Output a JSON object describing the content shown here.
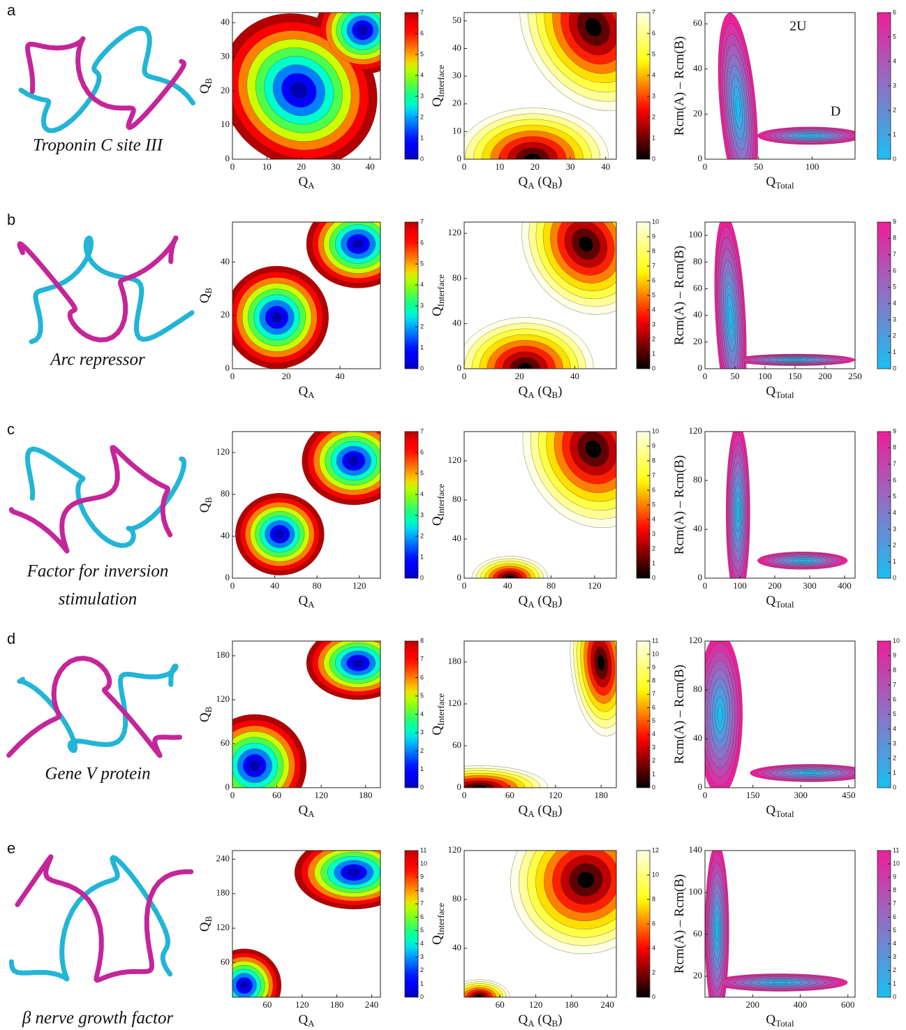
{
  "rows": [
    {
      "label": "a",
      "protein": [
        "Troponin C site III"
      ],
      "plots": [
        {
          "colormap": "jet",
          "xlabel": [
            "Q",
            "A"
          ],
          "ylabel": [
            "Q",
            "B"
          ],
          "xlim": [
            0,
            43
          ],
          "ylim": [
            0,
            43
          ],
          "xticks": [
            0,
            10,
            20,
            30,
            40
          ],
          "yticks": [
            0,
            10,
            20,
            30,
            40
          ],
          "clim": [
            0,
            7
          ],
          "cticks": [
            0,
            1,
            2,
            3,
            4,
            5,
            6,
            7
          ]
        },
        {
          "colormap": "hot",
          "xlabel": [
            "Q",
            "A",
            " (Q",
            "B",
            ")"
          ],
          "ylabel": [
            "Q",
            "Interface"
          ],
          "xlim": [
            0,
            43
          ],
          "ylim": [
            0,
            53
          ],
          "xticks": [
            0,
            10,
            20,
            30,
            40
          ],
          "yticks": [
            0,
            10,
            20,
            30,
            40,
            50
          ],
          "clim": [
            0,
            7
          ],
          "cticks": [
            0,
            1,
            2,
            3,
            4,
            5,
            6,
            7
          ]
        },
        {
          "colormap": "cool",
          "xlabel": [
            "Q",
            "Total"
          ],
          "ylabel": [
            "Rcm(A) – Rcm(B)"
          ],
          "xlim": [
            0,
            140
          ],
          "ylim": [
            0,
            65
          ],
          "xticks": [
            0,
            50,
            100
          ],
          "yticks": [
            0,
            20,
            40,
            60
          ],
          "clim": [
            0,
            6
          ],
          "cticks": [
            0,
            1,
            2,
            3,
            4,
            5,
            6
          ],
          "annotations": [
            "2U",
            "D"
          ]
        }
      ]
    },
    {
      "label": "b",
      "protein": [
        "Arc repressor"
      ],
      "plots": [
        {
          "colormap": "jet",
          "xlabel": [
            "Q",
            "A"
          ],
          "ylabel": [
            "Q",
            "B"
          ],
          "xlim": [
            0,
            55
          ],
          "ylim": [
            0,
            55
          ],
          "xticks": [
            0,
            20,
            40
          ],
          "yticks": [
            0,
            20,
            40
          ],
          "clim": [
            0,
            7
          ],
          "cticks": [
            0,
            1,
            2,
            3,
            4,
            5,
            6,
            7
          ]
        },
        {
          "colormap": "hot",
          "xlabel": [
            "Q",
            "A",
            " (Q",
            "B",
            ")"
          ],
          "ylabel": [
            "Q",
            "Interface"
          ],
          "xlim": [
            0,
            55
          ],
          "ylim": [
            0,
            130
          ],
          "xticks": [
            0,
            20,
            40
          ],
          "yticks": [
            0,
            40,
            80,
            120
          ],
          "clim": [
            0,
            10
          ],
          "cticks": [
            0,
            1,
            2,
            3,
            4,
            5,
            6,
            7,
            8,
            9,
            10
          ]
        },
        {
          "colormap": "cool",
          "xlabel": [
            "Q",
            "Total"
          ],
          "ylabel": [
            "Rcm(A) – Rcm(B)"
          ],
          "xlim": [
            0,
            250
          ],
          "ylim": [
            0,
            110
          ],
          "xticks": [
            0,
            50,
            100,
            150,
            200,
            250
          ],
          "yticks": [
            0,
            20,
            40,
            60,
            80,
            100
          ],
          "clim": [
            0,
            9
          ],
          "cticks": [
            0,
            1,
            2,
            3,
            4,
            5,
            6,
            7,
            8,
            9
          ]
        }
      ]
    },
    {
      "label": "c",
      "protein": [
        "Factor for inversion",
        "stimulation"
      ],
      "plots": [
        {
          "colormap": "jet",
          "xlabel": [
            "Q",
            "A"
          ],
          "ylabel": [
            "Q",
            "B"
          ],
          "xlim": [
            0,
            140
          ],
          "ylim": [
            0,
            140
          ],
          "xticks": [
            0,
            40,
            80,
            120
          ],
          "yticks": [
            0,
            40,
            80,
            120
          ],
          "clim": [
            0,
            7
          ],
          "cticks": [
            0,
            1,
            2,
            3,
            4,
            5,
            6,
            7
          ]
        },
        {
          "colormap": "hot",
          "xlabel": [
            "Q",
            "A",
            " (Q",
            "B",
            ")"
          ],
          "ylabel": [
            "Q",
            "Interface"
          ],
          "xlim": [
            0,
            140
          ],
          "ylim": [
            0,
            150
          ],
          "xticks": [
            0,
            40,
            80,
            120
          ],
          "yticks": [
            0,
            40,
            80,
            120
          ],
          "clim": [
            0,
            10
          ],
          "cticks": [
            0,
            1,
            2,
            3,
            4,
            5,
            6,
            7,
            8,
            9,
            10
          ]
        },
        {
          "colormap": "cool",
          "xlabel": [
            "Q",
            "Total"
          ],
          "ylabel": [
            "Rcm(A) – Rcm(B)"
          ],
          "xlim": [
            0,
            430
          ],
          "ylim": [
            0,
            120
          ],
          "xticks": [
            0,
            100,
            200,
            300,
            400
          ],
          "yticks": [
            0,
            40,
            80,
            120
          ],
          "clim": [
            0,
            9
          ],
          "cticks": [
            0,
            1,
            2,
            3,
            4,
            5,
            6,
            7,
            8,
            9
          ]
        }
      ]
    },
    {
      "label": "d",
      "protein": [
        "Gene V protein"
      ],
      "plots": [
        {
          "colormap": "jet",
          "xlabel": [
            "Q",
            "A"
          ],
          "ylabel": [
            "Q",
            "B"
          ],
          "xlim": [
            0,
            200
          ],
          "ylim": [
            0,
            200
          ],
          "xticks": [
            0,
            60,
            120,
            180
          ],
          "yticks": [
            0,
            60,
            120,
            180
          ],
          "clim": [
            0,
            8
          ],
          "cticks": [
            0,
            1,
            2,
            3,
            4,
            5,
            6,
            7,
            8
          ]
        },
        {
          "colormap": "hot",
          "xlabel": [
            "Q",
            "A",
            " (Q",
            "B",
            ")"
          ],
          "ylabel": [
            "Q",
            "Interface"
          ],
          "xlim": [
            0,
            200
          ],
          "ylim": [
            0,
            210
          ],
          "xticks": [
            0,
            60,
            120,
            180
          ],
          "yticks": [
            0,
            60,
            120,
            180
          ],
          "clim": [
            0,
            11
          ],
          "cticks": [
            0,
            1,
            2,
            3,
            4,
            5,
            6,
            7,
            8,
            9,
            10,
            11
          ]
        },
        {
          "colormap": "cool",
          "xlabel": [
            "Q",
            "Total"
          ],
          "ylabel": [
            "Rcm(A) – Rcm(B)"
          ],
          "xlim": [
            0,
            470
          ],
          "ylim": [
            0,
            120
          ],
          "xticks": [
            0,
            150,
            300,
            450
          ],
          "yticks": [
            0,
            40,
            80,
            120
          ],
          "clim": [
            0,
            10
          ],
          "cticks": [
            0,
            1,
            2,
            3,
            4,
            5,
            6,
            7,
            8,
            9,
            10
          ]
        }
      ]
    },
    {
      "label": "e",
      "protein": [
        "β nerve growth factor"
      ],
      "plots": [
        {
          "colormap": "jet",
          "xlabel": [
            "Q",
            "A"
          ],
          "ylabel": [
            "Q",
            "B"
          ],
          "xlim": [
            0,
            255
          ],
          "ylim": [
            0,
            255
          ],
          "xticks": [
            60,
            120,
            180,
            240
          ],
          "yticks": [
            60,
            120,
            180,
            240
          ],
          "clim": [
            0,
            11
          ],
          "cticks": [
            0,
            1,
            2,
            3,
            4,
            5,
            6,
            7,
            8,
            9,
            10,
            11
          ]
        },
        {
          "colormap": "hot",
          "xlabel": [
            "Q",
            "A",
            " (Q",
            "B",
            ")"
          ],
          "ylabel": [
            "Q",
            "Interface"
          ],
          "xlim": [
            0,
            255
          ],
          "ylim": [
            0,
            120
          ],
          "xticks": [
            60,
            120,
            180,
            240
          ],
          "yticks": [
            40,
            80,
            120
          ],
          "clim": [
            0,
            12
          ],
          "cticks": [
            0,
            2,
            4,
            6,
            8,
            10,
            12
          ]
        },
        {
          "colormap": "cool",
          "xlabel": [
            "Q",
            "Total"
          ],
          "ylabel": [
            "Rcm(A) – Rcm(B)"
          ],
          "xlim": [
            0,
            630
          ],
          "ylim": [
            0,
            140
          ],
          "xticks": [
            200,
            400,
            600
          ],
          "yticks": [
            20,
            60,
            100,
            140
          ],
          "clim": [
            0,
            11
          ],
          "cticks": [
            0,
            1,
            2,
            3,
            4,
            5,
            6,
            7,
            8,
            9,
            10,
            11
          ]
        }
      ]
    }
  ]
}
